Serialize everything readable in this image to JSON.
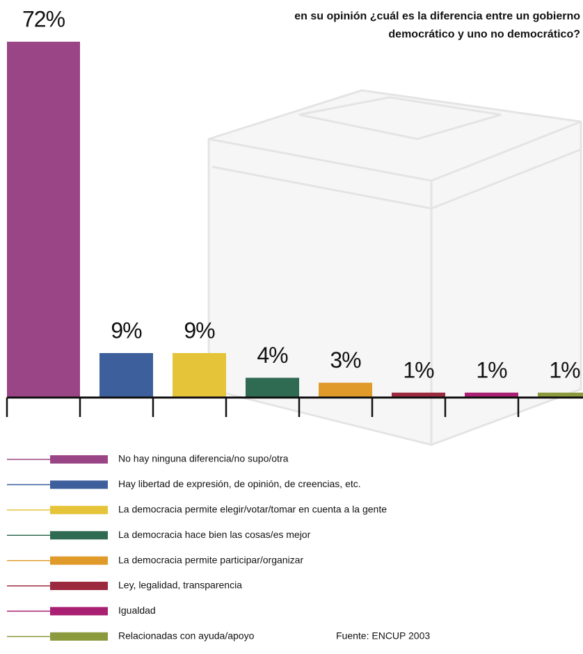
{
  "chart_data": {
    "type": "bar",
    "title": [
      "en su opinión ¿cuál es la diferencia entre un gobierno",
      "democrático y uno no democrático?"
    ],
    "categories": [
      "No hay ninguna diferencia/no supo/otra",
      "Hay libertad de expresión, de opinión, de creencias, etc.",
      "La democracia permite elegir/votar/tomar en cuenta a la gente",
      "La democracia hace bien las cosas/es mejor",
      "La democracia permite participar/organizar",
      "Ley, legalidad, transparencia",
      "Igualdad",
      "Relacionadas con ayuda/apoyo"
    ],
    "values": [
      72,
      9,
      9,
      4,
      3,
      1,
      1,
      1
    ],
    "value_labels": [
      "72%",
      "9%",
      "9%",
      "4%",
      "3%",
      "1%",
      "1%",
      "1%"
    ],
    "colors": [
      "#9a4585",
      "#3d5f9b",
      "#e5c43a",
      "#2f6b52",
      "#df9a2a",
      "#9b2a3e",
      "#a91f72",
      "#8b9a3d"
    ],
    "source": "Fuente: ENCUP 2003"
  }
}
